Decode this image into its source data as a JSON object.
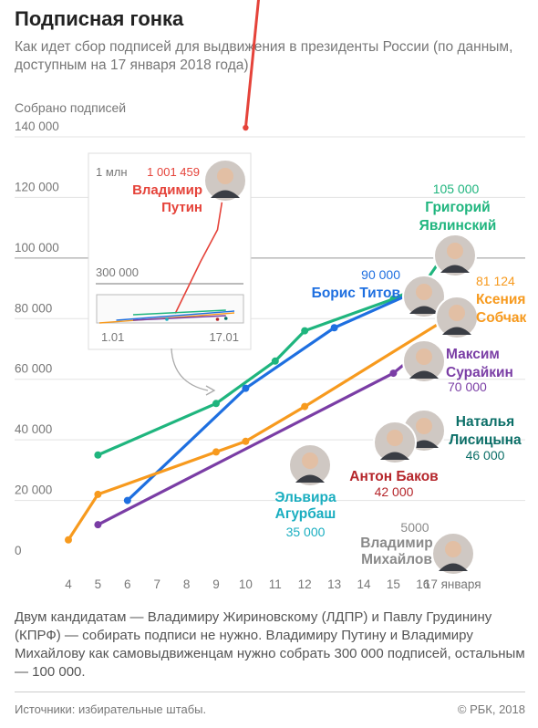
{
  "header": {
    "title": "Подписная гонка",
    "subtitle": "Как идет сбор подписей для выдвижения в президенты России (по данным, доступным на 17 января 2018 года)"
  },
  "chart_data": {
    "type": "line",
    "ylabel": "Собрано подписей",
    "ylim": [
      0,
      140000
    ],
    "yticks": [
      0,
      20000,
      40000,
      60000,
      80000,
      100000,
      120000,
      140000
    ],
    "ytick_labels": [
      "0",
      "20 000",
      "40 000",
      "60 000",
      "80 000",
      "100 000",
      "120 000",
      "140 000"
    ],
    "xlim": [
      3.5,
      18
    ],
    "xticks": [
      4,
      5,
      6,
      7,
      8,
      9,
      10,
      11,
      12,
      13,
      14,
      15,
      16
    ],
    "xtick_labels": [
      "4",
      "5",
      "6",
      "7",
      "8",
      "9",
      "10",
      "11",
      "12",
      "13",
      "14",
      "15",
      "16"
    ],
    "x_end_label": "17 января",
    "grid": true,
    "series": [
      {
        "name": "Григорий Явлинский",
        "color": "#1fb57e",
        "points": [
          [
            5,
            35000
          ],
          [
            9,
            52000
          ],
          [
            11,
            66000
          ],
          [
            12,
            76000
          ],
          [
            15,
            86500
          ],
          [
            16,
            91000
          ],
          [
            17,
            105000
          ]
        ],
        "end_value": "105 000",
        "label_lines": [
          "Григорий",
          "Явлинский"
        ]
      },
      {
        "name": "Борис Титов",
        "color": "#1e6fe0",
        "points": [
          [
            6,
            20000
          ],
          [
            10,
            57000
          ],
          [
            13,
            77000
          ],
          [
            16,
            90000
          ]
        ],
        "end_value": "90 000",
        "label_lines": [
          "Борис Титов"
        ]
      },
      {
        "name": "Ксения Собчак",
        "color": "#f79a1e",
        "points": [
          [
            4,
            7000
          ],
          [
            5,
            22000
          ],
          [
            9,
            36000
          ],
          [
            10,
            39500
          ],
          [
            12,
            51000
          ],
          [
            17,
            81124
          ]
        ],
        "end_value": "81 124",
        "label_lines": [
          "Ксения",
          "Собчак"
        ]
      },
      {
        "name": "Максим Сурайкин",
        "color": "#7a3da5",
        "points": [
          [
            5,
            12000
          ],
          [
            15,
            62000
          ],
          [
            16,
            70000
          ]
        ],
        "end_value": "70 000",
        "label_lines": [
          "Максим",
          "Сурайкин"
        ]
      }
    ],
    "point_labels": [
      {
        "name": "Наталья Лисицына",
        "value_label": "46 000",
        "color": "#0c6f68",
        "label_lines": [
          "Наталья",
          "Лисицына"
        ]
      },
      {
        "name": "Антон Баков",
        "value_label": "42 000",
        "color": "#b5262b",
        "label_lines": [
          "Антон Баков"
        ]
      },
      {
        "name": "Эльвира Агурбаш",
        "value_label": "35 000",
        "color": "#1aaec0",
        "label_lines": [
          "Эльвира",
          "Агурбаш"
        ]
      },
      {
        "name": "Владимир Михайлов",
        "value_label": "5000",
        "color": "#8a8a8a",
        "label_lines": [
          "Владимир",
          "Михайлов"
        ]
      }
    ],
    "putin": {
      "name": "Владимир Путин",
      "color": "#e5433a",
      "value_label": "1 001 459",
      "label_lines": [
        "Владимир",
        "Путин"
      ]
    },
    "inset": {
      "y_top_label": "1 млн",
      "y_mid_label": "300 000",
      "x_start_label": "1.01",
      "x_end_label": "17.01",
      "putin_points": [
        [
          10,
          60000
        ],
        [
          12,
          300000
        ],
        [
          13,
          420000
        ],
        [
          15,
          640000
        ],
        [
          16,
          1001459
        ]
      ]
    }
  },
  "footer": {
    "note": "Двум кандидатам — Владимиру Жириновскому (ЛДПР) и Павлу Грудинину (КПРФ) — собирать подписи не нужно. Владимиру Путину и Владимиру Михайлову как самовыдвиженцам нужно собрать 300 000 подписей, остальным — 100 000.",
    "source": "Источники: избирательные штабы.",
    "copyright": "© РБК, 2018"
  }
}
